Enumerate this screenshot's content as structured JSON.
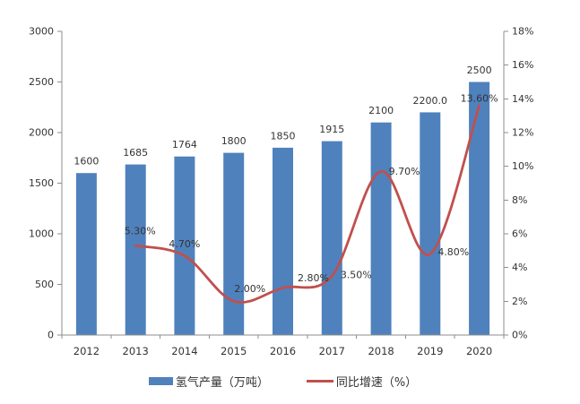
{
  "chart_data": {
    "type": "combo-bar-line",
    "title": "",
    "categories": [
      "2012",
      "2013",
      "2014",
      "2015",
      "2016",
      "2017",
      "2018",
      "2019",
      "2020"
    ],
    "series": [
      {
        "name": "氢气产量（万吨）",
        "type": "bar",
        "color": "#4f81bd",
        "axis": "left",
        "values": [
          1600,
          1685,
          1764,
          1800,
          1850,
          1915,
          2100,
          2200.0,
          2500
        ],
        "labels": [
          "1600",
          "1685",
          "1764",
          "1800",
          "1850",
          "1915",
          "2100",
          "2200.0",
          "2500"
        ]
      },
      {
        "name": "同比增速（%）",
        "type": "line",
        "smooth": true,
        "color": "#c0504d",
        "axis": "right",
        "values": [
          null,
          5.3,
          4.7,
          2.0,
          2.8,
          3.5,
          9.7,
          4.8,
          13.6
        ],
        "labels": [
          null,
          "5.30%",
          "4.70%",
          "2.00%",
          "2.80%",
          "3.50%",
          "9.70%",
          "4.80%",
          "13.60%"
        ],
        "label_offsets": [
          null,
          [
            5,
            -16
          ],
          [
            0,
            -13
          ],
          [
            18,
            -14
          ],
          [
            34,
            -11
          ],
          [
            27,
            -1
          ],
          [
            26,
            0
          ],
          [
            26,
            -2
          ],
          [
            0,
            -8
          ]
        ]
      }
    ],
    "left_axis": {
      "min": 0,
      "max": 3000,
      "step": 500,
      "tick_labels": [
        "0",
        "500",
        "1000",
        "1500",
        "2000",
        "2500",
        "3000"
      ]
    },
    "right_axis": {
      "min": 0,
      "max": 18,
      "step": 2,
      "tick_labels": [
        "0%",
        "2%",
        "4%",
        "6%",
        "8%",
        "10%",
        "12%",
        "14%",
        "16%",
        "18%"
      ]
    },
    "grid": false,
    "legend_position": "bottom",
    "axis_color": "#8e8e8e",
    "text_color": "#333333",
    "background": "#ffffff"
  }
}
